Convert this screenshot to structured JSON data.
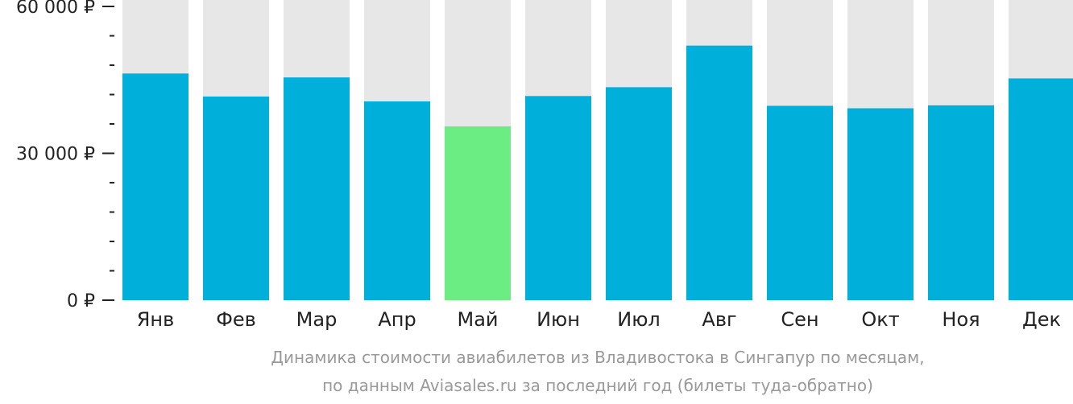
{
  "chart_data": {
    "type": "bar",
    "categories": [
      "Янв",
      "Фев",
      "Мар",
      "Апр",
      "Май",
      "Июн",
      "Июл",
      "Авг",
      "Сен",
      "Окт",
      "Ноя",
      "Дек"
    ],
    "values": [
      46300,
      41600,
      45500,
      40600,
      35500,
      41700,
      43500,
      52000,
      39700,
      39200,
      39800,
      45300
    ],
    "ylim": [
      0,
      60000
    ],
    "yticks": [
      {
        "value": 60000,
        "label": "60 000 ₽"
      },
      {
        "value": 30000,
        "label": "30 000 ₽"
      },
      {
        "value": 0,
        "label": "0 ₽"
      }
    ],
    "minor_tick_step": 6000,
    "highlight_index": 4,
    "colors": {
      "bar": "#00b0db",
      "highlight": "#6ced83",
      "background_bar": "#e7e7e7",
      "axis": "#222222"
    },
    "grid": false,
    "legend": "none"
  },
  "caption": {
    "line1": "Динамика стоимости авиабилетов из Владивостока в Сингапур по месяцам,",
    "line2": "по данным Aviasales.ru за последний год (билеты туда-обратно)"
  }
}
